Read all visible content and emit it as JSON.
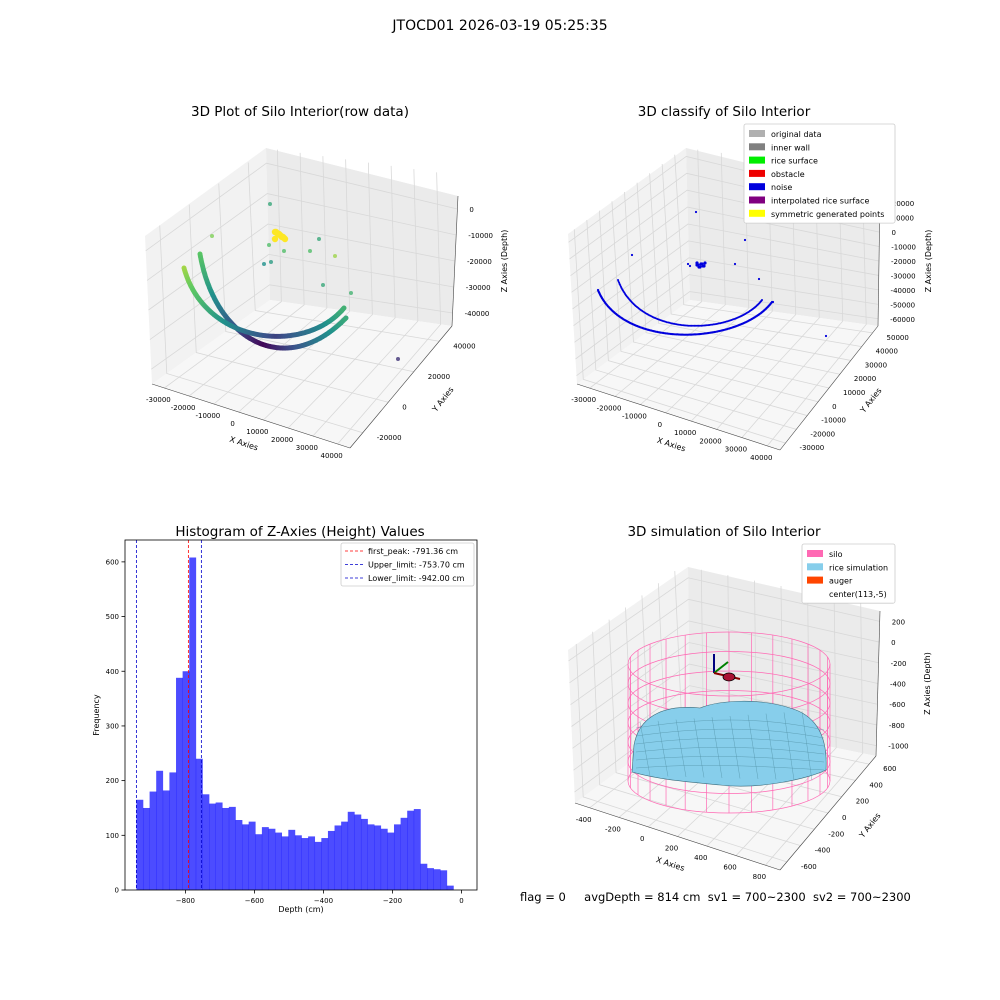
{
  "suptitle": "JTOCD01 2026-03-19 05:25:35",
  "footer": {
    "flag": "flag = 0",
    "avg": "avgDepth = 814 cm",
    "sv1": "sv1 = 700~2300",
    "sv2": "sv2 = 700~2300"
  },
  "chart_data": [
    {
      "type": "scatter",
      "title": "3D Plot of Silo Interior(row data)",
      "xlabel": "X Axies",
      "ylabel": "Y Axies",
      "zlabel": "Z Axies (Depth)",
      "xticks": [
        "-30000",
        "-20000",
        "-10000",
        "0",
        "10000",
        "20000",
        "30000",
        "40000"
      ],
      "yticks": [
        "-20000",
        "0",
        "20000",
        "40000"
      ],
      "zticks": [
        "0",
        "-10000",
        "-20000",
        "-30000",
        "-40000"
      ],
      "colormap": "viridis",
      "grid": true
    },
    {
      "type": "scatter",
      "title": "3D classify of Silo Interior",
      "xlabel": "X Axies",
      "ylabel": "Y Axies",
      "zlabel": "Z Axies (Depth)",
      "xticks": [
        "-30000",
        "-20000",
        "-10000",
        "0",
        "10000",
        "20000",
        "30000",
        "40000"
      ],
      "yticks": [
        "-30000",
        "-20000",
        "-10000",
        "0",
        "10000",
        "20000",
        "30000",
        "40000",
        "50000"
      ],
      "zticks": [
        "20000",
        "10000",
        "0",
        "-10000",
        "-20000",
        "-30000",
        "-40000",
        "-50000",
        "-60000"
      ],
      "legend": [
        {
          "label": "original data",
          "color": "#b0b0b0"
        },
        {
          "label": "inner wall",
          "color": "#808080"
        },
        {
          "label": "rice surface",
          "color": "#00ee00"
        },
        {
          "label": "obstacle",
          "color": "#ee0000"
        },
        {
          "label": "noise",
          "color": "#0000dd"
        },
        {
          "label": "interpolated rice surface",
          "color": "#800080"
        },
        {
          "label": "symmetric generated points",
          "color": "#ffff00"
        }
      ],
      "legend_position": "top-right",
      "grid": true
    },
    {
      "type": "bar",
      "title": "Histogram of Z-Axies (Height) Values",
      "xlabel": "Depth (cm)",
      "ylabel": "Frequency",
      "xlim": [
        -975,
        45
      ],
      "ylim": [
        0,
        640
      ],
      "xticks": [
        -800,
        -600,
        -400,
        -200,
        0
      ],
      "yticks": [
        0,
        100,
        200,
        300,
        400,
        500,
        600
      ],
      "bin_start": -942,
      "bin_width": 19.14,
      "values": [
        165,
        150,
        180,
        218,
        182,
        215,
        388,
        400,
        608,
        240,
        175,
        158,
        160,
        150,
        152,
        128,
        120,
        125,
        102,
        115,
        112,
        105,
        98,
        110,
        100,
        95,
        98,
        88,
        95,
        108,
        118,
        125,
        143,
        138,
        130,
        120,
        118,
        112,
        105,
        120,
        132,
        145,
        148,
        48,
        40,
        38,
        36,
        8
      ],
      "color": "#0000ff",
      "vlines": [
        {
          "label": "first_peak: -791.36 cm",
          "x": -791.36,
          "color": "#ff0000"
        },
        {
          "label": "Upper_limit: -753.70 cm",
          "x": -753.7,
          "color": "#0000cc"
        },
        {
          "label": "Lower_limit: -942.00 cm",
          "x": -942.0,
          "color": "#0000cc"
        }
      ],
      "legend_position": "top-right"
    },
    {
      "type": "surface",
      "title": "3D simulation of Silo Interior",
      "xlabel": "X Axies",
      "ylabel": "Y Axies",
      "zlabel": "Z Axies (Depth)",
      "xticks": [
        "-400",
        "-200",
        "0",
        "200",
        "400",
        "600",
        "800"
      ],
      "yticks": [
        "-600",
        "-400",
        "-200",
        "0",
        "200",
        "400",
        "600"
      ],
      "zticks": [
        "200",
        "0",
        "-200",
        "-400",
        "-600",
        "-800",
        "-1000"
      ],
      "legend": [
        {
          "label": "silo",
          "color": "#ff69b4"
        },
        {
          "label": "rice simulation",
          "color": "#87ceeb"
        },
        {
          "label": "auger",
          "color": "#ff4500"
        },
        {
          "label": "center(113,-5)",
          "color": "#ffffff"
        }
      ],
      "legend_position": "top-right",
      "grid": true
    }
  ]
}
